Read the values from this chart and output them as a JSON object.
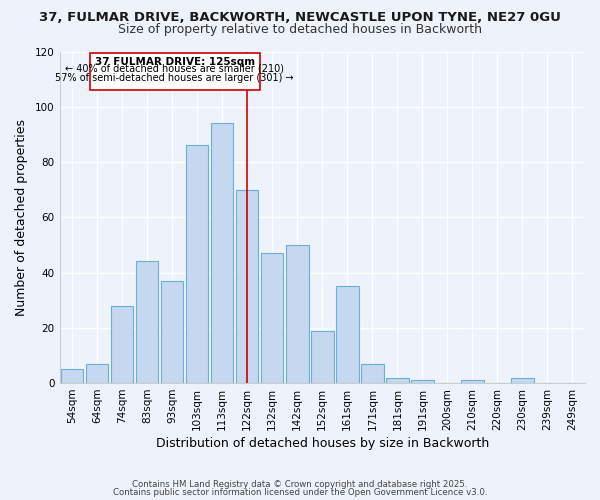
{
  "title_line1": "37, FULMAR DRIVE, BACKWORTH, NEWCASTLE UPON TYNE, NE27 0GU",
  "title_line2": "Size of property relative to detached houses in Backworth",
  "xlabel": "Distribution of detached houses by size in Backworth",
  "ylabel": "Number of detached properties",
  "categories": [
    "54sqm",
    "64sqm",
    "74sqm",
    "83sqm",
    "93sqm",
    "103sqm",
    "113sqm",
    "122sqm",
    "132sqm",
    "142sqm",
    "152sqm",
    "161sqm",
    "171sqm",
    "181sqm",
    "191sqm",
    "200sqm",
    "210sqm",
    "220sqm",
    "230sqm",
    "239sqm",
    "249sqm"
  ],
  "values": [
    5,
    7,
    28,
    44,
    37,
    86,
    94,
    70,
    47,
    50,
    19,
    35,
    7,
    2,
    1,
    0,
    1,
    0,
    2,
    0,
    0
  ],
  "bar_color": "#C5D8EF",
  "bar_edge_color": "#6BAED6",
  "background_color": "#EEF3FB",
  "property_label": "37 FULMAR DRIVE: 125sqm",
  "annotation_line1": "← 40% of detached houses are smaller (210)",
  "annotation_line2": "57% of semi-detached houses are larger (301) →",
  "vline_color": "#CC0000",
  "annotation_box_edge": "#CC0000",
  "footnote1": "Contains HM Land Registry data © Crown copyright and database right 2025.",
  "footnote2": "Contains public sector information licensed under the Open Government Licence v3.0.",
  "ylim": [
    0,
    120
  ],
  "yticks": [
    0,
    20,
    40,
    60,
    80,
    100,
    120
  ],
  "title_fontsize": 9.5,
  "subtitle_fontsize": 9,
  "axis_label_fontsize": 9,
  "tick_fontsize": 7.5,
  "vline_x_index": 7.0
}
